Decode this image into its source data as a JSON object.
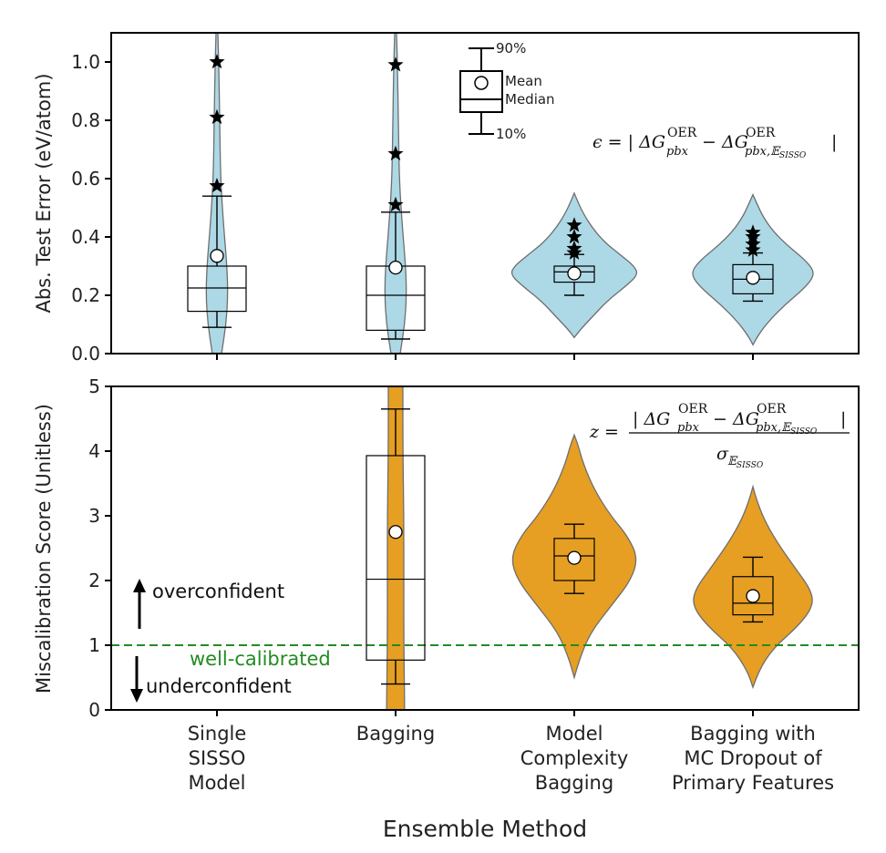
{
  "chart_data": [
    {
      "type": "violin",
      "panel": "top",
      "ylabel": "Abs. Test Error (eV/atom)",
      "ylim": [
        0,
        1.1
      ],
      "yticks": [
        "0.0",
        "0.2",
        "0.4",
        "0.6",
        "0.8",
        "1.0"
      ],
      "violin_color": "#add8e6",
      "categories": [
        "Single SISSO Model",
        "Bagging",
        "Model Complexity Bagging",
        "Bagging with MC Dropout of Primary Features"
      ],
      "boxes": [
        {
          "q1": 0.145,
          "median": 0.225,
          "q3": 0.3,
          "p10": 0.09,
          "p90": 0.54,
          "mean": 0.335,
          "outliers": [
            0.575,
            0.81,
            1.0
          ]
        },
        {
          "q1": 0.08,
          "median": 0.2,
          "q3": 0.3,
          "p10": 0.05,
          "p90": 0.485,
          "mean": 0.295,
          "outliers": [
            0.51,
            0.685,
            0.99
          ]
        },
        {
          "q1": 0.245,
          "median": 0.28,
          "q3": 0.3,
          "p10": 0.2,
          "p90": 0.34,
          "mean": 0.275,
          "outliers": [
            0.345,
            0.36,
            0.4,
            0.44
          ]
        },
        {
          "q1": 0.205,
          "median": 0.255,
          "q3": 0.305,
          "p10": 0.18,
          "p90": 0.345,
          "mean": 0.26,
          "outliers": [
            0.355,
            0.375,
            0.4,
            0.415
          ]
        }
      ],
      "equation": "ε = |ΔG^OER_pbx − ΔG^OER_pbx,E_SISSO|",
      "legend": {
        "p90": "90%",
        "mean": "Mean",
        "median": "Median",
        "p10": "10%"
      }
    },
    {
      "type": "violin",
      "panel": "bottom",
      "ylabel": "Miscalibration Score (Unitless)",
      "ylim": [
        0,
        5
      ],
      "yticks": [
        "0",
        "1",
        "2",
        "3",
        "4",
        "5"
      ],
      "violin_color": "#e69f22",
      "categories": [
        "Single SISSO Model",
        "Bagging",
        "Model Complexity Bagging",
        "Bagging with MC Dropout of Primary Features"
      ],
      "boxes": [
        null,
        {
          "q1": 0.77,
          "median": 2.02,
          "q3": 3.93,
          "p10": 0.4,
          "p90": 4.65,
          "mean": 2.75
        },
        {
          "q1": 2.0,
          "median": 2.38,
          "q3": 2.65,
          "p10": 1.8,
          "p90": 2.87,
          "mean": 2.35
        },
        {
          "q1": 1.47,
          "median": 1.65,
          "q3": 2.06,
          "p10": 1.36,
          "p90": 2.36,
          "mean": 1.76
        }
      ],
      "reference_line": {
        "y": 1,
        "label": "well-calibrated",
        "color": "#228b22"
      },
      "annotations": {
        "up": "overconfident",
        "down": "underconfident"
      },
      "equation": "z = |ΔG^OER_pbx − ΔG^OER_pbx,E_SISSO| / σ_E_SISSO"
    }
  ],
  "xaxis_title": "Ensemble Method",
  "category_lines": [
    [
      "Single",
      "SISSO",
      "Model"
    ],
    [
      "Bagging"
    ],
    [
      "Model",
      "Complexity",
      "Bagging"
    ],
    [
      "Bagging with",
      "MC Dropout of",
      "Primary Features"
    ]
  ]
}
